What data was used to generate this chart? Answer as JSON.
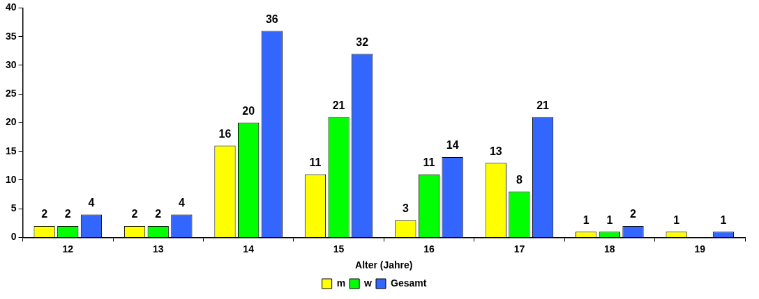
{
  "chart_data": {
    "type": "bar",
    "xlabel": "Alter (Jahre)",
    "categories": [
      "12",
      "13",
      "14",
      "15",
      "16",
      "17",
      "18",
      "19"
    ],
    "series": [
      {
        "name": "m",
        "color": "#ffff00",
        "values": [
          2,
          2,
          16,
          11,
          3,
          13,
          1,
          1
        ]
      },
      {
        "name": "w",
        "color": "#00ff00",
        "values": [
          2,
          2,
          20,
          21,
          11,
          8,
          1,
          null
        ]
      },
      {
        "name": "Gesamt",
        "color": "#3366ff",
        "values": [
          4,
          4,
          36,
          32,
          14,
          21,
          2,
          1
        ]
      }
    ],
    "ylim": [
      0,
      40
    ],
    "yticks": [
      0,
      5,
      10,
      15,
      20,
      25,
      30,
      35,
      40
    ],
    "grid": false,
    "legend": "bottom",
    "data_labels": true
  }
}
